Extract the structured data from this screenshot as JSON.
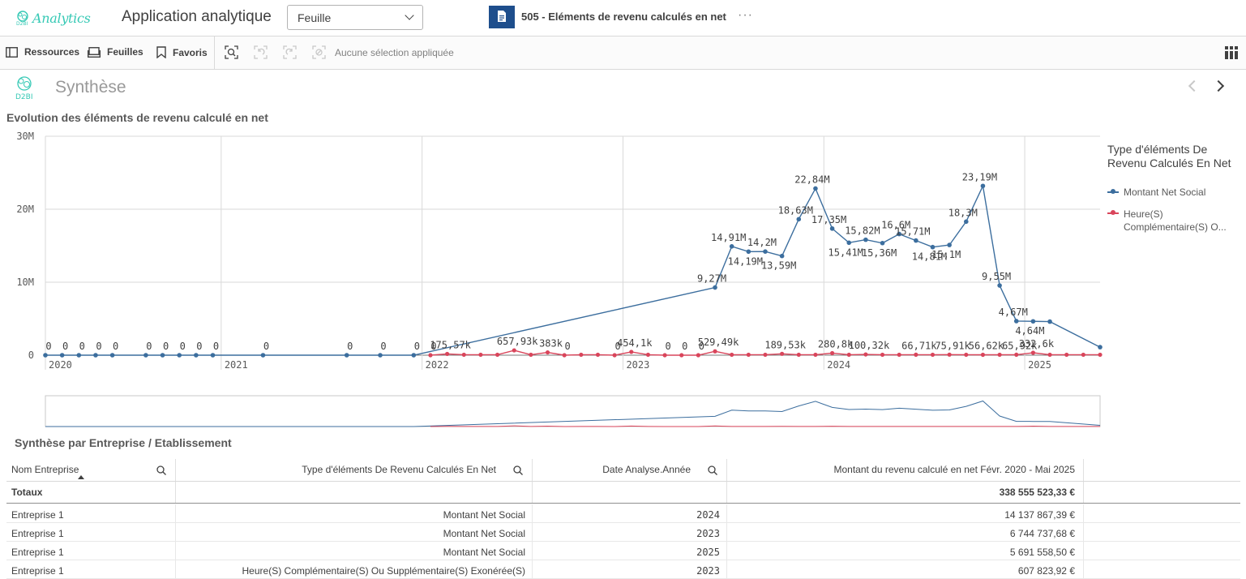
{
  "topbar": {
    "logo_text": "Analytics",
    "app_title": "Application analytique",
    "sheet_select_value": "Feuille",
    "sheet_name": "505 - Eléments de revenu calculés en net",
    "more": "···"
  },
  "toolbar": {
    "resources": "Ressources",
    "sheets": "Feuilles",
    "bookmarks": "Favoris",
    "no_selection": "Aucune sélection appliquée"
  },
  "sheet": {
    "logo_text": "D2BI",
    "title": "Synthèse"
  },
  "chart_data": {
    "type": "line",
    "title": "Evolution des éléments de revenu calculé en net",
    "y_ticks": [
      "30M",
      "20M",
      "10M",
      "0"
    ],
    "ylim": [
      0,
      30000000
    ],
    "x_year_labels": [
      "2020",
      "2021",
      "2022",
      "2023",
      "2024",
      "2025"
    ],
    "legend_title": "Type d'éléments De Revenu Calculés En Net",
    "legend_placement": "right",
    "grid": true,
    "series": [
      {
        "name": "Montant Net Social",
        "color": "#3c6e9e",
        "labeled_points": [
          {
            "label": "0"
          },
          {
            "label": "0"
          },
          {
            "label": "0"
          },
          {
            "label": "0"
          },
          {
            "label": "0"
          },
          {
            "label": "0"
          },
          {
            "label": "0"
          },
          {
            "label": "0"
          },
          {
            "label": "0"
          },
          {
            "label": "0"
          },
          {
            "label": "0"
          },
          {
            "label": "0"
          },
          {
            "label": "0"
          },
          {
            "label": "0"
          },
          {
            "label": "9,27M",
            "value": 9270000
          },
          {
            "label": "14,91M",
            "value": 14910000
          },
          {
            "label": "14,19M",
            "value": 14190000
          },
          {
            "label": "14,2M",
            "value": 14200000
          },
          {
            "label": "13,59M",
            "value": 13590000
          },
          {
            "label": "18,63M",
            "value": 18630000
          },
          {
            "label": "22,84M",
            "value": 22840000
          },
          {
            "label": "17,35M",
            "value": 17350000
          },
          {
            "label": "15,41M",
            "value": 15410000
          },
          {
            "label": "15,82M",
            "value": 15820000
          },
          {
            "label": "15,36M",
            "value": 15360000
          },
          {
            "label": "16,6M",
            "value": 16600000
          },
          {
            "label": "15,71M",
            "value": 15710000
          },
          {
            "label": "14,81M",
            "value": 14810000
          },
          {
            "label": "15,1M",
            "value": 15100000
          },
          {
            "label": "18,3M",
            "value": 18300000
          },
          {
            "label": "23,19M",
            "value": 23190000
          },
          {
            "label": "9,55M",
            "value": 9550000
          },
          {
            "label": "4,67M",
            "value": 4670000
          },
          {
            "label": "4,64M",
            "value": 4640000
          }
        ]
      },
      {
        "name": "Heure(S) Complémentaire(S) O...",
        "color": "#d9455b",
        "labeled_points": [
          {
            "label": "0"
          },
          {
            "label": "175,57k",
            "value": 175570
          },
          {
            "label": "657,93k",
            "value": 657930
          },
          {
            "label": "383k",
            "value": 383000
          },
          {
            "label": "0"
          },
          {
            "label": "0"
          },
          {
            "label": "454,1k",
            "value": 454100
          },
          {
            "label": "0"
          },
          {
            "label": "0"
          },
          {
            "label": "0"
          },
          {
            "label": "529,49k",
            "value": 529490
          },
          {
            "label": "189,53k",
            "value": 189530
          },
          {
            "label": "280,8k",
            "value": 280800
          },
          {
            "label": "100,32k",
            "value": 100320
          },
          {
            "label": "66,71k",
            "value": 66710
          },
          {
            "label": "75,91k",
            "value": 75910
          },
          {
            "label": "56,62k",
            "value": 56620
          },
          {
            "label": "65,92k",
            "value": 65920
          },
          {
            "label": "332,6k",
            "value": 332600
          }
        ]
      }
    ]
  },
  "table": {
    "title": "Synthèse par Entreprise / Etablissement",
    "columns": [
      "Nom Entreprise",
      "Type d'éléments De Revenu Calculés En Net",
      "Date Analyse.Année",
      "Montant du revenu calculé en net Févr. 2020 - Mai 2025"
    ],
    "totals_label": "Totaux",
    "totals_value": "338 555 523,33 €",
    "rows": [
      [
        "Entreprise 1",
        "Montant Net Social",
        "2024",
        "14 137 867,39 €"
      ],
      [
        "Entreprise 1",
        "Montant Net Social",
        "2023",
        "6 744 737,68 €"
      ],
      [
        "Entreprise 1",
        "Montant Net Social",
        "2025",
        "5 691 558,50 €"
      ],
      [
        "Entreprise 1",
        "Heure(S) Complémentaire(S) Ou Supplémentaire(S) Exonérée(S)",
        "2023",
        "607 823,92 €"
      ]
    ]
  }
}
